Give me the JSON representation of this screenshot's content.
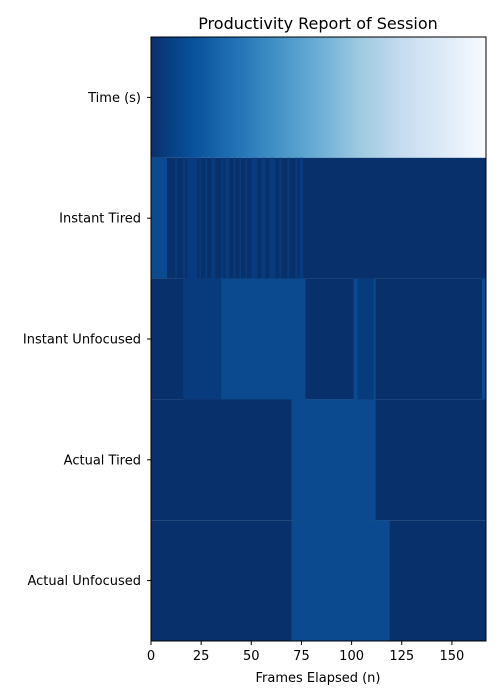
{
  "chart_data": {
    "type": "heatmap",
    "title": "Productivity Report of Session",
    "xlabel": "Frames Elapsed (n)",
    "ylabel": "",
    "xlim": [
      0,
      167
    ],
    "xticks": [
      0,
      25,
      50,
      75,
      100,
      125,
      150
    ],
    "rows": [
      "Time (s)",
      "Instant Tired",
      "Instant Unfocused",
      "Actual Tired",
      "Actual Unfocused"
    ],
    "colormap": "Blues",
    "colors": {
      "base": "#08306b",
      "mid": "#083a7e",
      "light": "#0b4a8f",
      "gradient": [
        "#08306b",
        "#08519c",
        "#2171b5",
        "#4292c6",
        "#6baed6",
        "#9ecae1",
        "#c6dbef",
        "#deebf7",
        "#f7fbff"
      ]
    },
    "series": [
      {
        "name": "Time (s)",
        "kind": "gradient",
        "from": 0,
        "to": 167
      },
      {
        "name": "Instant Tired",
        "kind": "segments",
        "base": "base",
        "segments": [
          [
            0,
            8,
            "light"
          ],
          [
            12,
            13,
            "mid"
          ],
          [
            16,
            17,
            "mid"
          ],
          [
            18,
            23,
            "mid"
          ],
          [
            24,
            25,
            "mid"
          ],
          [
            27,
            28,
            "mid"
          ],
          [
            30,
            32,
            "mid"
          ],
          [
            35,
            36,
            "mid"
          ],
          [
            37,
            39,
            "mid"
          ],
          [
            41,
            42,
            "mid"
          ],
          [
            44,
            45,
            "mid"
          ],
          [
            47,
            48,
            "mid"
          ],
          [
            50,
            53,
            "mid"
          ],
          [
            55,
            57,
            "mid"
          ],
          [
            59,
            62,
            "mid"
          ],
          [
            64,
            65,
            "mid"
          ],
          [
            68,
            69,
            "mid"
          ],
          [
            72,
            73,
            "mid"
          ],
          [
            74,
            76,
            "mid"
          ]
        ]
      },
      {
        "name": "Instant Unfocused",
        "kind": "segments",
        "base": "base",
        "segments": [
          [
            16,
            35,
            "mid"
          ],
          [
            35,
            77,
            "light"
          ],
          [
            101,
            103,
            "light"
          ],
          [
            103,
            111,
            "mid"
          ],
          [
            111,
            112,
            "light"
          ],
          [
            165,
            167,
            "light"
          ]
        ]
      },
      {
        "name": "Actual Tired",
        "kind": "segments",
        "base": "base",
        "segments": [
          [
            70,
            112,
            "light"
          ]
        ]
      },
      {
        "name": "Actual Unfocused",
        "kind": "segments",
        "base": "base",
        "segments": [
          [
            70,
            119,
            "light"
          ]
        ]
      }
    ]
  }
}
